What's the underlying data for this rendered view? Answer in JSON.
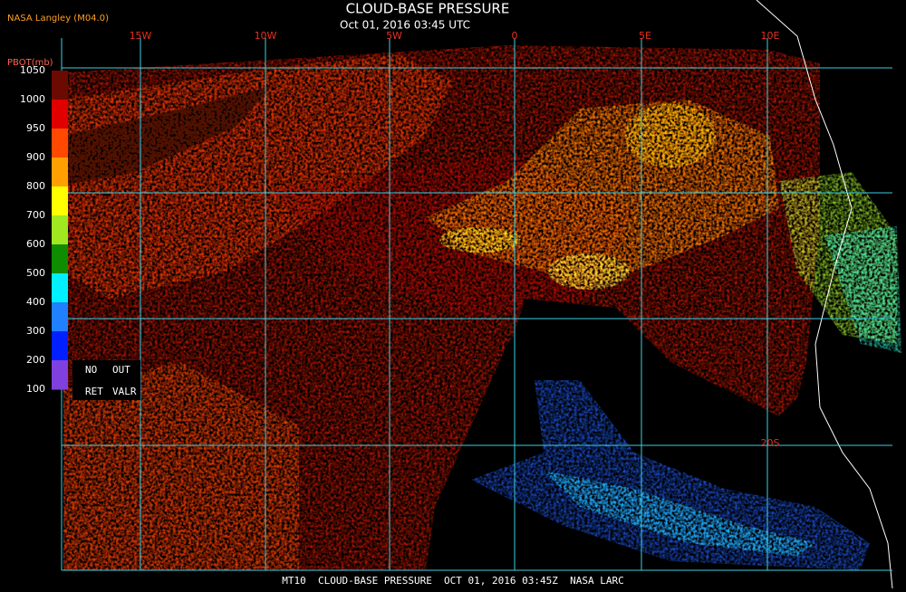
{
  "header": {
    "source": "NASA Langley (M04.0)",
    "title": "CLOUD-BASE PRESSURE",
    "subtitle": "Oct 01, 2016 03:45 UTC"
  },
  "legend": {
    "title": "PBOT(mb)",
    "labels": [
      1050,
      1000,
      950,
      900,
      800,
      700,
      600,
      500,
      400,
      300,
      200,
      100
    ],
    "missing": [
      "NO",
      "OUT",
      "RET",
      "VALR"
    ]
  },
  "grid_labels": {
    "longitude": [
      "15W",
      "10W",
      "5W",
      "0",
      "5E",
      "10E"
    ],
    "latitude": [
      "20S"
    ]
  },
  "footer": "MT10  CLOUD-BASE PRESSURE  OCT 01, 2016 03:45Z  NASA LARC"
}
